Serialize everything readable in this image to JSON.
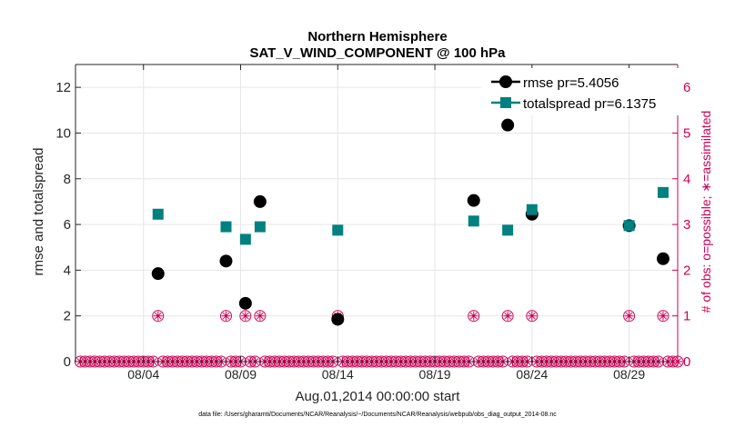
{
  "chart_data": {
    "type": "scatter",
    "title": "Northern Hemisphere",
    "subtitle": "SAT_V_WIND_COMPONENT @ 100 hPa",
    "xlabel": "Aug.01,2014 00:00:00 start",
    "ylabel": "rmse and totalspread",
    "y2label": "# of obs: o=possible; ∗=assimilated",
    "footnote": "data file: /Users/gharamti/Documents/NCAR/Reanalysis/~/Documents/NCAR/Reanalysis/webpub/obs_diag_output_2014-08.nc",
    "xlim": [
      0.5,
      31.5
    ],
    "ylim": [
      0,
      13
    ],
    "y2lim": [
      0,
      6.5
    ],
    "grid": true,
    "x_ticks": [
      {
        "x": 4,
        "label": "08/04"
      },
      {
        "x": 9,
        "label": "08/09"
      },
      {
        "x": 14,
        "label": "08/14"
      },
      {
        "x": 19,
        "label": "08/19"
      },
      {
        "x": 24,
        "label": "08/24"
      },
      {
        "x": 29,
        "label": "08/29"
      }
    ],
    "y_ticks": [
      0,
      2,
      4,
      6,
      8,
      10,
      12
    ],
    "y2_ticks": [
      0,
      1,
      2,
      3,
      4,
      5,
      6
    ],
    "legend_position": "top-right",
    "series": [
      {
        "name": "rmse pr=5.4056",
        "color": "#000000",
        "marker": "circle",
        "points": [
          [
            4.75,
            3.85
          ],
          [
            8.25,
            4.4
          ],
          [
            9.25,
            2.55
          ],
          [
            10.0,
            7.0
          ],
          [
            14.0,
            1.85
          ],
          [
            21.0,
            7.05
          ],
          [
            22.75,
            10.35
          ],
          [
            24.0,
            6.45
          ],
          [
            29.0,
            5.95
          ],
          [
            30.75,
            4.5
          ]
        ]
      },
      {
        "name": "totalspread pr=6.1375",
        "color": "#008080",
        "marker": "square",
        "points": [
          [
            4.75,
            6.45
          ],
          [
            8.25,
            5.9
          ],
          [
            9.25,
            5.35
          ],
          [
            10.0,
            5.9
          ],
          [
            14.0,
            5.75
          ],
          [
            21.0,
            6.15
          ],
          [
            22.75,
            5.75
          ],
          [
            24.0,
            6.65
          ],
          [
            29.0,
            5.95
          ],
          [
            30.75,
            7.4
          ]
        ]
      }
    ],
    "obs_possible": {
      "color": "#cc0055",
      "x_start": 0.75,
      "x_end": 31.5,
      "step": 0.25,
      "nonzero": [
        [
          4.75,
          1
        ],
        [
          8.25,
          1
        ],
        [
          9.25,
          1
        ],
        [
          10.0,
          1
        ],
        [
          14.0,
          1
        ],
        [
          21.0,
          1
        ],
        [
          22.75,
          1
        ],
        [
          24.0,
          1
        ],
        [
          29.0,
          1
        ],
        [
          30.75,
          1
        ]
      ]
    },
    "obs_assimilated": {
      "color": "#cc0055",
      "nonzero": [
        [
          4.75,
          1
        ],
        [
          8.25,
          1
        ],
        [
          9.25,
          1
        ],
        [
          10.0,
          1
        ],
        [
          14.0,
          1
        ],
        [
          21.0,
          1
        ],
        [
          22.75,
          1
        ],
        [
          24.0,
          1
        ],
        [
          29.0,
          1
        ],
        [
          30.75,
          1
        ]
      ]
    }
  }
}
